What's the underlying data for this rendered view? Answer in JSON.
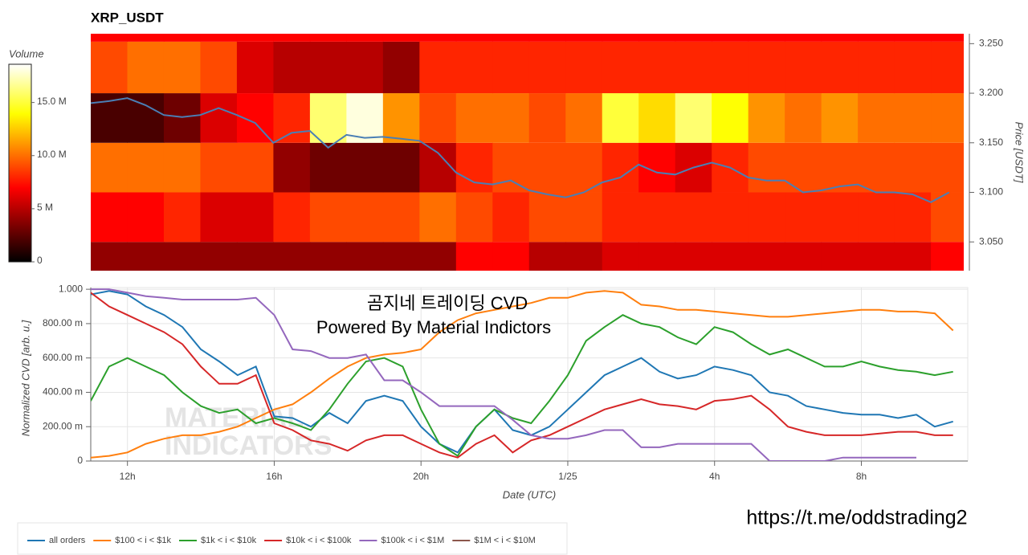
{
  "chart_data": [
    {
      "type": "heatmap",
      "title": "XRP_USDT",
      "y_label": "Price [USDT]",
      "colormap": "hot",
      "colorbar_label": "Volume",
      "clim": [
        0,
        18600000
      ],
      "colorbar_ticks": [
        0,
        {
          "value": 5000000,
          "label": "5 M"
        },
        {
          "value": 10000000,
          "label": "10.0 M"
        },
        {
          "value": 15000000,
          "label": "15.0 M"
        }
      ],
      "xlim": [
        11,
        34.9
      ],
      "ylim": [
        3.021,
        3.26
      ],
      "yticks": [
        {
          "value": 3.05,
          "label": "3.050"
        },
        {
          "value": 3.1,
          "label": "3.100"
        },
        {
          "value": 3.15,
          "label": "3.150"
        },
        {
          "value": 3.2,
          "label": "3.200"
        },
        {
          "value": 3.25,
          "label": "3.250"
        }
      ],
      "x_edges": [
        11,
        12,
        13,
        14,
        15,
        16,
        17,
        18,
        19,
        20,
        21,
        22,
        23,
        24,
        25,
        26,
        27,
        28,
        29,
        30,
        31,
        32,
        33,
        34,
        35
      ],
      "y_edges": [
        3.021,
        3.05,
        3.1,
        3.15,
        3.2,
        3.252,
        3.26
      ],
      "values": [
        [
          4000000.0,
          4000000.0,
          4000000.0,
          4000000.0,
          4000000.0,
          4000000.0,
          4000000.0,
          4000000.0,
          4000000.0,
          4000000.0,
          7000000.0,
          7000000.0,
          5000000.0,
          5000000.0,
          6000000.0,
          6000000.0,
          6000000.0,
          6000000.0,
          6000000.0,
          6000000.0,
          6000000.0,
          6000000.0,
          6000000.0,
          7000000.0
        ],
        [
          7000000.0,
          7000000.0,
          8000000.0,
          6000000.0,
          6000000.0,
          8000000.0,
          9000000.0,
          9000000.0,
          9000000.0,
          10000000.0,
          9000000.0,
          8000000.0,
          9000000.0,
          9000000.0,
          8000000.0,
          8000000.0,
          8000000.0,
          8000000.0,
          8000000.0,
          8000000.0,
          8000000.0,
          8000000.0,
          8000000.0,
          9000000.0
        ],
        [
          10000000.0,
          10000000.0,
          10000000.0,
          9000000.0,
          9000000.0,
          4000000.0,
          3000000.0,
          3000000.0,
          3000000.0,
          5000000.0,
          8000000.0,
          9000000.0,
          9000000.0,
          9000000.0,
          8000000.0,
          7000000.0,
          6000000.0,
          8000000.0,
          9000000.0,
          9000000.0,
          9000000.0,
          9000000.0,
          9000000.0,
          9000000.0
        ],
        [
          2000000.0,
          2000000.0,
          3000000.0,
          6000000.0,
          7000000.0,
          8000000.0,
          16000000.0,
          18000000.0,
          11000000.0,
          9000000.0,
          10000000.0,
          10000000.0,
          9000000.0,
          10000000.0,
          15000000.0,
          13000000.0,
          16000000.0,
          14000000.0,
          11000000.0,
          10000000.0,
          11000000.0,
          10000000.0,
          10000000.0,
          10000000.0
        ],
        [
          9000000.0,
          10000000.0,
          10000000.0,
          9000000.0,
          6000000.0,
          5000000.0,
          5000000.0,
          5000000.0,
          4000000.0,
          8000000.0,
          8000000.0,
          8000000.0,
          8000000.0,
          8000000.0,
          8000000.0,
          8000000.0,
          8000000.0,
          8000000.0,
          8000000.0,
          8000000.0,
          8000000.0,
          8000000.0,
          8000000.0,
          8000000.0
        ],
        [
          7000000.0,
          7000000.0,
          7000000.0,
          7000000.0,
          7000000.0,
          7000000.0,
          7000000.0,
          7000000.0,
          7000000.0,
          7000000.0,
          7000000.0,
          7000000.0,
          7000000.0,
          7000000.0,
          7000000.0,
          7000000.0,
          7000000.0,
          7000000.0,
          7000000.0,
          7000000.0,
          7000000.0,
          7000000.0,
          7000000.0,
          7000000.0
        ]
      ],
      "price_color": "#4a7fb5",
      "price_x": [
        11,
        11.5,
        12,
        12.5,
        13,
        13.5,
        14,
        14.5,
        15,
        15.5,
        16,
        16.5,
        17,
        17.5,
        18,
        18.5,
        19,
        19.5,
        20,
        20.5,
        21,
        21.5,
        22,
        22.5,
        23,
        23.5,
        24,
        24.5,
        25,
        25.5,
        26,
        26.5,
        27,
        27.5,
        28,
        28.5,
        29,
        29.5,
        30,
        30.5,
        31,
        31.5,
        32,
        32.5,
        33,
        33.5,
        34,
        34.5
      ],
      "price": [
        3.19,
        3.192,
        3.195,
        3.188,
        3.178,
        3.176,
        3.178,
        3.185,
        3.178,
        3.17,
        3.15,
        3.16,
        3.162,
        3.145,
        3.158,
        3.155,
        3.156,
        3.154,
        3.152,
        3.14,
        3.12,
        3.11,
        3.108,
        3.112,
        3.102,
        3.098,
        3.095,
        3.1,
        3.11,
        3.115,
        3.128,
        3.12,
        3.118,
        3.125,
        3.13,
        3.125,
        3.115,
        3.112,
        3.112,
        3.1,
        3.102,
        3.106,
        3.108,
        3.1,
        3.1,
        3.098,
        3.09,
        3.1
      ]
    },
    {
      "type": "line",
      "y_label": "Normalized CVD [arb. u.]",
      "x_label": "Date (UTC)",
      "grid": true,
      "xlim": [
        11,
        34.9
      ],
      "ylim": [
        0,
        1.01
      ],
      "xticks": [
        {
          "value": 12,
          "label": "12h"
        },
        {
          "value": 16,
          "label": "16h"
        },
        {
          "value": 20,
          "label": "20h"
        },
        {
          "value": 24,
          "label": "1/25"
        },
        {
          "value": 28,
          "label": "4h"
        },
        {
          "value": 32,
          "label": "8h"
        }
      ],
      "yticks": [
        0,
        {
          "value": 0.2,
          "label": "200.00 m"
        },
        {
          "value": 0.4,
          "label": "400.00 m"
        },
        {
          "value": 0.6,
          "label": "600.00 m"
        },
        {
          "value": 0.8,
          "label": "800.00 m"
        },
        {
          "value": 1,
          "label": "1.000"
        }
      ],
      "x": [
        11,
        11.5,
        12,
        12.5,
        13,
        13.5,
        14,
        14.5,
        15,
        15.5,
        16,
        16.5,
        17,
        17.5,
        18,
        18.5,
        19,
        19.5,
        20,
        20.5,
        21,
        21.5,
        22,
        22.5,
        23,
        23.5,
        24,
        24.5,
        25,
        25.5,
        26,
        26.5,
        27,
        27.5,
        28,
        28.5,
        29,
        29.5,
        30,
        30.5,
        31,
        31.5,
        32,
        32.5,
        33,
        33.5,
        34,
        34.5
      ],
      "series": [
        {
          "name": "all orders",
          "color": "#1f77b4",
          "values": [
            0.97,
            0.99,
            0.97,
            0.9,
            0.85,
            0.78,
            0.65,
            0.58,
            0.5,
            0.55,
            0.26,
            0.25,
            0.2,
            0.28,
            0.22,
            0.35,
            0.38,
            0.35,
            0.2,
            0.1,
            0.05,
            0.2,
            0.3,
            0.18,
            0.15,
            0.2,
            0.3,
            0.4,
            0.5,
            0.55,
            0.6,
            0.52,
            0.48,
            0.5,
            0.55,
            0.53,
            0.5,
            0.4,
            0.38,
            0.32,
            0.3,
            0.28,
            0.27,
            0.27,
            0.25,
            0.27,
            0.2,
            0.23
          ]
        },
        {
          "name": "$100 < i < $1k",
          "color": "#ff7f0e",
          "values": [
            0.02,
            0.03,
            0.05,
            0.1,
            0.13,
            0.15,
            0.15,
            0.17,
            0.2,
            0.25,
            0.3,
            0.33,
            0.4,
            0.48,
            0.55,
            0.6,
            0.62,
            0.63,
            0.65,
            0.75,
            0.82,
            0.86,
            0.88,
            0.9,
            0.92,
            0.95,
            0.95,
            0.98,
            0.99,
            0.98,
            0.91,
            0.9,
            0.88,
            0.88,
            0.87,
            0.86,
            0.85,
            0.84,
            0.84,
            0.85,
            0.86,
            0.87,
            0.88,
            0.88,
            0.87,
            0.87,
            0.86,
            0.76
          ]
        },
        {
          "name": "$1k < i < $10k",
          "color": "#2ca02c",
          "values": [
            0.35,
            0.55,
            0.6,
            0.55,
            0.5,
            0.4,
            0.32,
            0.28,
            0.3,
            0.22,
            0.25,
            0.22,
            0.18,
            0.3,
            0.45,
            0.58,
            0.6,
            0.55,
            0.3,
            0.1,
            0.03,
            0.2,
            0.3,
            0.25,
            0.22,
            0.35,
            0.5,
            0.7,
            0.78,
            0.85,
            0.8,
            0.78,
            0.72,
            0.68,
            0.78,
            0.75,
            0.68,
            0.62,
            0.65,
            0.6,
            0.55,
            0.55,
            0.58,
            0.55,
            0.53,
            0.52,
            0.5,
            0.52
          ]
        },
        {
          "name": "$10k < i < $100k",
          "color": "#d62728",
          "values": [
            0.98,
            0.9,
            0.85,
            0.8,
            0.75,
            0.68,
            0.55,
            0.45,
            0.45,
            0.5,
            0.22,
            0.18,
            0.12,
            0.1,
            0.06,
            0.12,
            0.15,
            0.15,
            0.1,
            0.05,
            0.02,
            0.1,
            0.15,
            0.05,
            0.12,
            0.15,
            0.2,
            0.25,
            0.3,
            0.33,
            0.36,
            0.33,
            0.32,
            0.3,
            0.35,
            0.36,
            0.38,
            0.3,
            0.2,
            0.17,
            0.15,
            0.15,
            0.15,
            0.16,
            0.17,
            0.17,
            0.15,
            0.15
          ]
        },
        {
          "name": "$100k < i < $1M",
          "color": "#9467bd",
          "values": [
            1,
            1,
            0.98,
            0.96,
            0.95,
            0.94,
            0.94,
            0.94,
            0.94,
            0.95,
            0.85,
            0.65,
            0.64,
            0.6,
            0.6,
            0.62,
            0.47,
            0.47,
            0.4,
            0.32,
            0.32,
            0.32,
            0.32,
            0.24,
            0.15,
            0.13,
            0.13,
            0.15,
            0.18,
            0.18,
            0.08,
            0.08,
            0.1,
            0.1,
            0.1,
            0.1,
            0.1,
            0,
            0,
            0,
            0,
            0.02,
            0.02,
            0.02,
            0.02,
            0.02,
            null,
            null
          ]
        },
        {
          "name": "$1M < i < $10M",
          "color": "#8c564b",
          "values": [
            null,
            null,
            null,
            null,
            null,
            null,
            null,
            null,
            null,
            null,
            null,
            null,
            null,
            null,
            null,
            null,
            null,
            null,
            null,
            null,
            null,
            null,
            null,
            null,
            null,
            null,
            null,
            null,
            null,
            null,
            null,
            null,
            null,
            null,
            null,
            null,
            null,
            null,
            null,
            null,
            null,
            null,
            null,
            null,
            null,
            null,
            null,
            null
          ]
        }
      ],
      "annotations": [
        "곰지네 트레이딩 CVD",
        "Powered By Material Indictors",
        "MATERIAL",
        "INDICATORS",
        "https://t.me/oddstrading2"
      ]
    }
  ]
}
